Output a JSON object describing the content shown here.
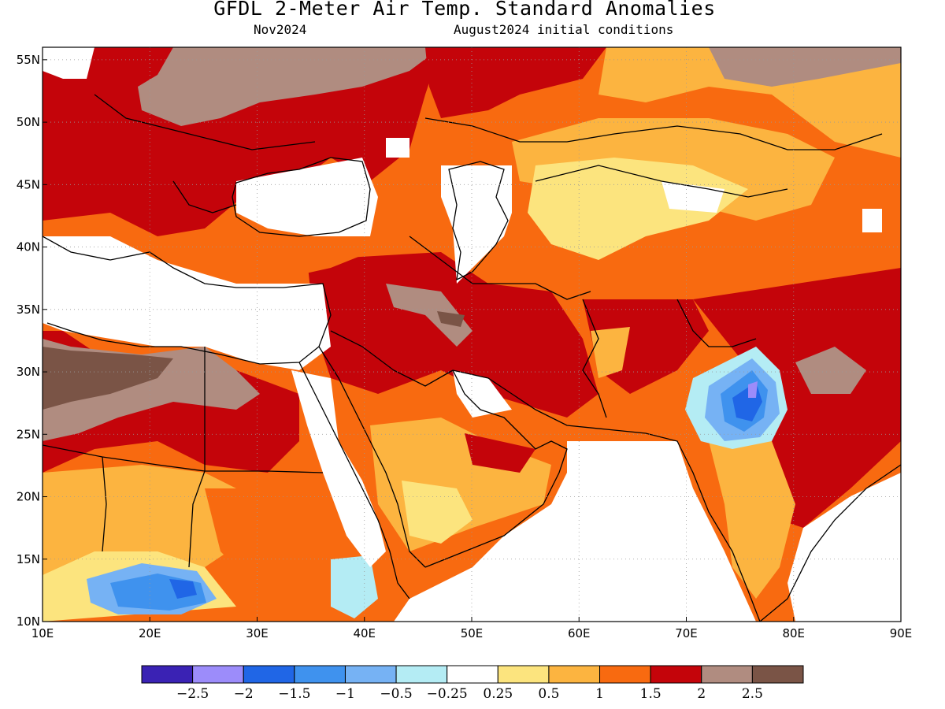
{
  "header": {
    "title": "GFDL 2-Meter Air Temp. Standard Anomalies",
    "valid_month": "Nov2024",
    "init_conditions": "August2024 initial conditions"
  },
  "map": {
    "projection": "lat-lon",
    "lon_range": [
      10,
      90
    ],
    "lat_range": [
      10,
      56
    ],
    "lon_ticks": [
      {
        "value": 10,
        "label": "10E"
      },
      {
        "value": 20,
        "label": "20E"
      },
      {
        "value": 30,
        "label": "30E"
      },
      {
        "value": 40,
        "label": "40E"
      },
      {
        "value": 50,
        "label": "50E"
      },
      {
        "value": 60,
        "label": "60E"
      },
      {
        "value": 70,
        "label": "70E"
      },
      {
        "value": 80,
        "label": "80E"
      },
      {
        "value": 90,
        "label": "90E"
      }
    ],
    "lat_ticks": [
      {
        "value": 10,
        "label": "10N"
      },
      {
        "value": 15,
        "label": "15N"
      },
      {
        "value": 20,
        "label": "20N"
      },
      {
        "value": 25,
        "label": "25N"
      },
      {
        "value": 30,
        "label": "30N"
      },
      {
        "value": 35,
        "label": "35N"
      },
      {
        "value": 40,
        "label": "40N"
      },
      {
        "value": 45,
        "label": "45N"
      },
      {
        "value": 50,
        "label": "50N"
      },
      {
        "value": 55,
        "label": "55N"
      }
    ],
    "gridlines": "dotted"
  },
  "colorbar": {
    "colors": [
      "#3a22b4",
      "#9c8cfa",
      "#2066e6",
      "#3f92ee",
      "#76b2f4",
      "#b4ecf4",
      "#ffffff",
      "#fce47e",
      "#fcb440",
      "#f86a10",
      "#c4040a",
      "#b08c80",
      "#7a5446"
    ],
    "labels": [
      "-2.5",
      "-2",
      "-1.5",
      "-1",
      "-0.5",
      "-0.25",
      "0.25",
      "0.5",
      "1",
      "1.5",
      "2",
      "2.5"
    ]
  }
}
